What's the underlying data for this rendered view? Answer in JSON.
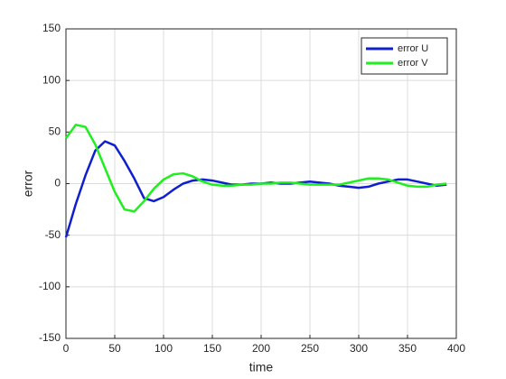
{
  "chart_data": {
    "type": "line",
    "xlabel": "time",
    "ylabel": "error",
    "x": [
      0,
      10,
      20,
      30,
      40,
      50,
      60,
      70,
      80,
      90,
      100,
      110,
      120,
      130,
      140,
      150,
      160,
      170,
      180,
      190,
      200,
      210,
      220,
      230,
      240,
      250,
      260,
      270,
      280,
      290,
      300,
      310,
      320,
      330,
      340,
      350,
      360,
      370,
      380,
      390
    ],
    "series": [
      {
        "name": "error U",
        "color": "#0f1fd0",
        "values": [
          -52,
          -20,
          8,
          32,
          41,
          37,
          22,
          5,
          -14,
          -17,
          -13,
          -6,
          0,
          3,
          4,
          3,
          1,
          -1,
          -1,
          0,
          0,
          1,
          0,
          0,
          1,
          2,
          1,
          0,
          -2,
          -3,
          -4,
          -3,
          0,
          2,
          4,
          4,
          2,
          0,
          -2,
          -1
        ]
      },
      {
        "name": "error V",
        "color": "#1ef01e",
        "values": [
          44,
          57,
          55,
          38,
          15,
          -8,
          -25,
          -27,
          -17,
          -5,
          4,
          9,
          10,
          7,
          2,
          -1,
          -2,
          -2,
          -1,
          -1,
          0,
          0,
          1,
          1,
          0,
          -1,
          -1,
          -1,
          -1,
          1,
          3,
          5,
          5,
          4,
          1,
          -2,
          -3,
          -3,
          -1,
          0
        ]
      }
    ],
    "xlim": [
      0,
      400
    ],
    "xticks": [
      0,
      50,
      100,
      150,
      200,
      250,
      300,
      350,
      400
    ],
    "ylim": [
      -150,
      150
    ],
    "yticks": [
      -150,
      -100,
      -50,
      0,
      50,
      100,
      150
    ],
    "grid": true,
    "legend": "northeast"
  }
}
